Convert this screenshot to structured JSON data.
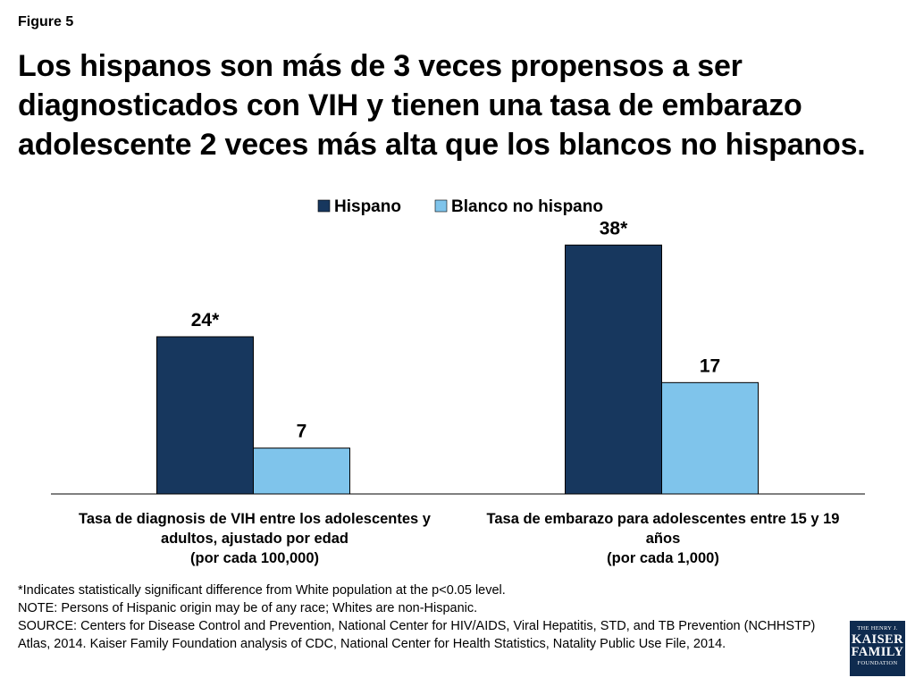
{
  "figure_label": "Figure 5",
  "title_lines": [
    "Los hispanos son más de 3 veces propensos a ser",
    "diagnosticados con VIH y tienen una tasa de embarazo",
    "adolescente 2 veces más alta que los blancos no hispanos."
  ],
  "chart_data": {
    "type": "bar",
    "categories": [
      [
        "Tasa de diagnosis de VIH entre los adolescentes y",
        "adultos, ajustado por edad",
        "(por cada 100,000)"
      ],
      [
        "Tasa de embarazo para adolescentes entre 15 y 19",
        "años",
        "(por cada 1,000)"
      ]
    ],
    "series": [
      {
        "name": "Hispano",
        "values": [
          24,
          38
        ],
        "labels": [
          "24*",
          "38*"
        ],
        "color": "#17375e"
      },
      {
        "name": "Blanco no hispano",
        "values": [
          7,
          17
        ],
        "labels": [
          "7",
          "17"
        ],
        "color": "#7fc4eb"
      }
    ],
    "ylim": [
      0,
      42
    ],
    "legend": "top-center",
    "grid": false
  },
  "footnotes": [
    "*Indicates statistically significant difference from White population at the p<0.05 level.",
    "NOTE: Persons of Hispanic origin may be of any race; Whites are non-Hispanic.",
    "SOURCE: Centers for Disease Control and Prevention, National Center for HIV/AIDS, Viral Hepatitis, STD, and TB Prevention (NCHHSTP) Atlas, 2014. Kaiser Family Foundation analysis of CDC, National Center for Health Statistics, Natality Public Use File, 2014."
  ],
  "logo": {
    "line1": "THE HENRY J.",
    "line2": "KAISER",
    "line3": "FAMILY",
    "line4": "FOUNDATION",
    "color": "#0f2b4f"
  }
}
